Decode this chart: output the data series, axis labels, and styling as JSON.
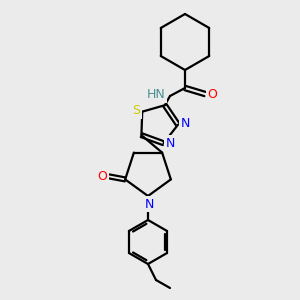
{
  "bg_color": "#ebebeb",
  "bond_color": "#000000",
  "atom_colors": {
    "N": "#0000ff",
    "O": "#ff0000",
    "S": "#cccc00",
    "H": "#4a9090",
    "C": "#000000"
  },
  "figsize": [
    3.0,
    3.0
  ],
  "dpi": 100
}
